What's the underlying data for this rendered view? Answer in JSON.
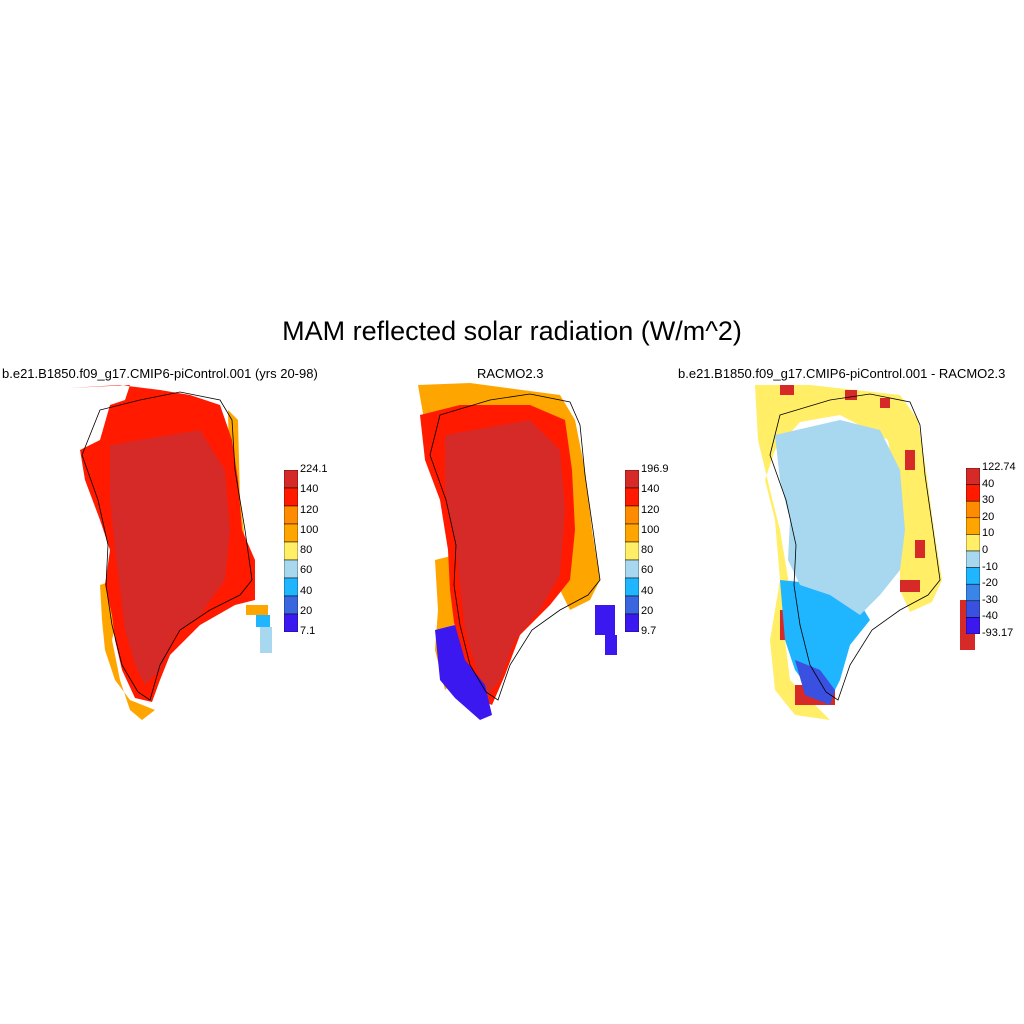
{
  "title": "MAM reflected solar radiation (W/m^2)",
  "panels": [
    {
      "title": "b.e21.B1850.f09_g17.CMIP6-piControl.001 (yrs 20-98)",
      "colorbar": {
        "labels": [
          "224.1",
          "140",
          "120",
          "100",
          "80",
          "60",
          "40",
          "20",
          "7.1"
        ],
        "colors": [
          "#d62a28",
          "#ff1a00",
          "#ff8c00",
          "#ffa500",
          "#ffee66",
          "#a8d8f0",
          "#1fb5ff",
          "#3a66e0",
          "#3c18f0"
        ]
      },
      "dominant": {
        "interior": "#d62a28",
        "margin": "#ff1a00",
        "edge": "#ffa500"
      }
    },
    {
      "title": "RACMO2.3",
      "colorbar": {
        "labels": [
          "196.9",
          "140",
          "120",
          "100",
          "80",
          "60",
          "40",
          "20",
          "9.7"
        ],
        "colors": [
          "#d62a28",
          "#ff1a00",
          "#ff8c00",
          "#ffa500",
          "#ffee66",
          "#a8d8f0",
          "#1fb5ff",
          "#3a66e0",
          "#3c18f0"
        ]
      },
      "dominant": {
        "interior": "#d62a28",
        "margin": "#ff1a00",
        "edge": "#ffa500"
      }
    },
    {
      "title": "b.e21.B1850.f09_g17.CMIP6-piControl.001 - RACMO2.3",
      "colorbar": {
        "labels": [
          "122.74",
          "40",
          "30",
          "20",
          "10",
          "0",
          "-10",
          "-20",
          "-30",
          "-40",
          "-93.17"
        ],
        "colors": [
          "#d62a28",
          "#ff1a00",
          "#ff8c00",
          "#ffa500",
          "#ffee66",
          "#a8d8f0",
          "#1fb5ff",
          "#3a86e8",
          "#3a50e0",
          "#3c18f0"
        ]
      },
      "dominant": {
        "interior": "#a8d8f0",
        "margin": "#1fb5ff",
        "edge": "#ffee66"
      }
    }
  ]
}
